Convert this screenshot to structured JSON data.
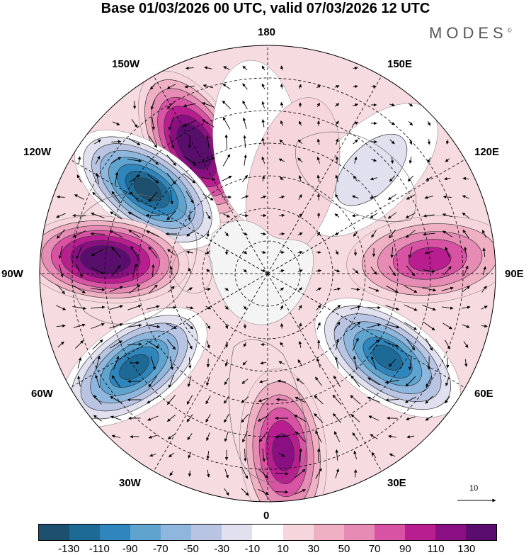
{
  "title": "Base 01/03/2026 00 UTC, valid 07/03/2026 12 UTC",
  "logo": "MODES",
  "logo_mark": "©",
  "longitude_labels": {
    "lon_180": "180",
    "lon_150e": "150E",
    "lon_120e": "120E",
    "lon_90e": "90E",
    "lon_60e": "60E",
    "lon_30e": "30E",
    "lon_0": "0",
    "lon_30w": "30W",
    "lon_60w": "60W",
    "lon_90w": "90W",
    "lon_120w": "120W",
    "lon_150w": "150W"
  },
  "vector_reference": "10",
  "colorbar": {
    "colors": [
      "#1d4f6e",
      "#1e6a97",
      "#2f86bd",
      "#5ea4cf",
      "#8fb6dc",
      "#b8c4e2",
      "#e0e0ef",
      "#ffffff",
      "#f6d6dc",
      "#efb0c3",
      "#e58bb4",
      "#d853a3",
      "#b81e8f",
      "#8a0f83",
      "#5a0d6f"
    ],
    "ticks": [
      "-130",
      "-110",
      "-90",
      "-70",
      "-50",
      "-30",
      "-10",
      "10",
      "30",
      "50",
      "70",
      "90",
      "110",
      "130"
    ]
  },
  "anomaly_centers": [
    {
      "value": 150,
      "lon": -150,
      "lat": 45
    },
    {
      "value": -150,
      "lon": -125,
      "lat": 45
    },
    {
      "value": 150,
      "lon": -95,
      "lat": 40
    },
    {
      "value": -130,
      "lon": -55,
      "lat": 40
    },
    {
      "value": 110,
      "lon": 5,
      "lat": 35
    },
    {
      "value": -130,
      "lon": 55,
      "lat": 45
    },
    {
      "value": 90,
      "lon": 95,
      "lat": 40
    },
    {
      "value": -30,
      "lon": 135,
      "lat": 45
    },
    {
      "value": -20,
      "lon": -175,
      "lat": 50
    },
    {
      "value": 20,
      "lon": 165,
      "lat": 60
    }
  ]
}
